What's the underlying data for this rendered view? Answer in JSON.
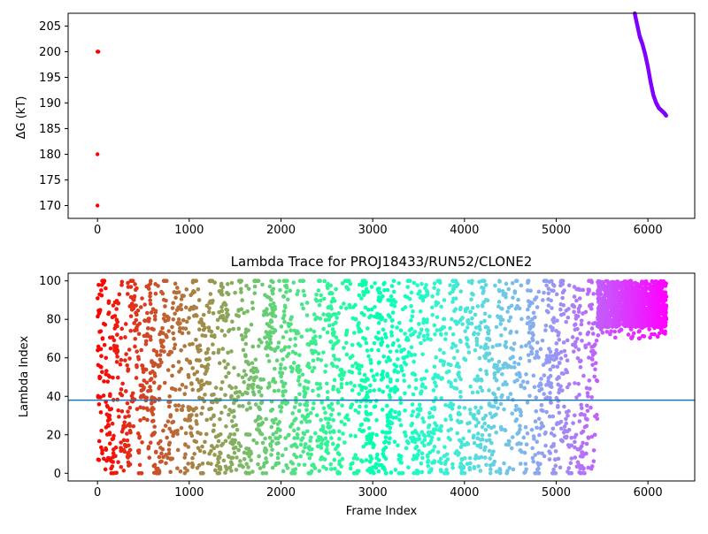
{
  "chart_data": [
    {
      "type": "scatter",
      "title": "",
      "xlabel": "",
      "ylabel": "ΔG (kT)",
      "xlim": [
        -320,
        6510
      ],
      "ylim": [
        167.5,
        207.5
      ],
      "xticks": [
        0,
        1000,
        2000,
        3000,
        4000,
        5000,
        6000
      ],
      "yticks": [
        170,
        175,
        180,
        185,
        190,
        195,
        200,
        205
      ],
      "grid": false,
      "points": [
        {
          "x": 0,
          "y": 200,
          "color": "#ff0000"
        },
        {
          "x": 10,
          "y": 200,
          "color": "#ff0000"
        },
        {
          "x": 0,
          "y": 180,
          "color": "#ff0000"
        },
        {
          "x": 0,
          "y": 170,
          "color": "#ff0000"
        }
      ],
      "series": [
        {
          "color": "#8000ff",
          "x": [
            5850,
            5880,
            5910,
            5940,
            5970,
            6000,
            6030,
            6060,
            6090,
            6120,
            6150,
            6180,
            6200
          ],
          "y": [
            208,
            205.5,
            203,
            201.5,
            199.5,
            197,
            194,
            191.5,
            190,
            189,
            188.5,
            188,
            187.5
          ]
        }
      ]
    },
    {
      "type": "scatter",
      "title": "Lambda Trace for PROJ18433/RUN52/CLONE2",
      "xlabel": "Frame Index",
      "ylabel": "Lambda Index",
      "xlim": [
        -320,
        6510
      ],
      "ylim": [
        -4,
        104
      ],
      "xticks": [
        0,
        1000,
        2000,
        3000,
        4000,
        5000,
        6000
      ],
      "yticks": [
        0,
        20,
        40,
        60,
        80,
        100
      ],
      "grid": false,
      "hline": {
        "y": 38,
        "color": "#1f77b4"
      },
      "colormap": "rainbow (red at frame 0 to violet at frame 6200)",
      "segments": [
        {
          "x_start": 0,
          "x_end": 60,
          "lambda_min": 0,
          "lambda_max": 100
        },
        {
          "x_start": 60,
          "x_end": 600,
          "lambda_min": 0,
          "lambda_max": 100
        },
        {
          "x_start": 600,
          "x_end": 1500,
          "lambda_min": 0,
          "lambda_max": 100
        },
        {
          "x_start": 1500,
          "x_end": 2500,
          "lambda_min": 0,
          "lambda_max": 100
        },
        {
          "x_start": 2500,
          "x_end": 5450,
          "lambda_min": 0,
          "lambda_max": 100
        },
        {
          "x_start": 5450,
          "x_end": 6200,
          "lambda_min": 65,
          "lambda_max": 100
        }
      ]
    }
  ]
}
